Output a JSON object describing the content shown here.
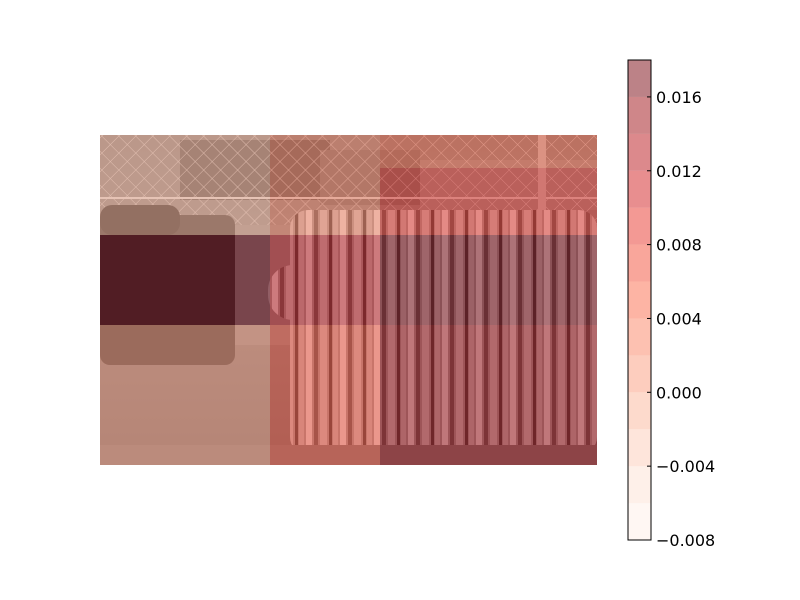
{
  "chart_data": {
    "type": "heatmap",
    "background_image": "grayscale photo of a striped sofa and an armchair on a pavement in front of a chain-link fence",
    "grid_rows": 4,
    "grid_cols": 3,
    "values": [
      [
        -0.0005,
        0.003,
        0.0045
      ],
      [
        0.0,
        0.004,
        0.0085
      ],
      [
        0.019,
        0.0135,
        0.017
      ],
      [
        0.002,
        0.007,
        0.015
      ]
    ],
    "colorbar": {
      "cmap": "Reds",
      "vmin": -0.008,
      "vmax": 0.018,
      "levels": [
        -0.008,
        -0.006,
        -0.004,
        -0.002,
        0.0,
        0.002,
        0.004,
        0.006,
        0.008,
        0.01,
        0.012,
        0.014,
        0.016,
        0.018
      ],
      "ticks": [
        -0.008,
        -0.004,
        0.0,
        0.004,
        0.008,
        0.012,
        0.016
      ],
      "tick_labels": [
        "−0.008",
        "−0.004",
        "0.000",
        "0.004",
        "0.008",
        "0.012",
        "0.016"
      ]
    }
  }
}
